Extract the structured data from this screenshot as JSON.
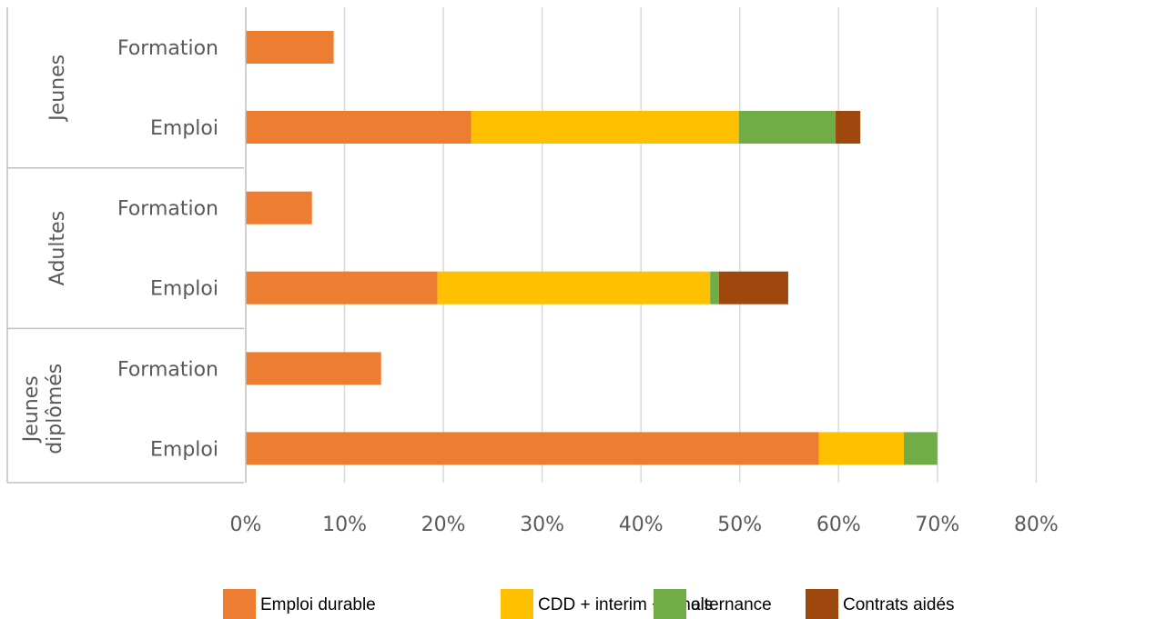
{
  "chart_data": {
    "type": "bar",
    "orientation": "horizontal",
    "stacked": true,
    "groups": [
      {
        "name": "Jeunes",
        "categories": [
          "Formation",
          "Emploi"
        ],
        "values": {
          "Emploi durable": [
            8.9,
            22.8
          ],
          "CDD + interim +6 mois": [
            0,
            27.1
          ],
          "alternance": [
            0,
            9.8
          ],
          "Contrats aidés": [
            0,
            2.5
          ]
        }
      },
      {
        "name": "Adultes",
        "categories": [
          "Formation",
          "Emploi"
        ],
        "values": {
          "Emploi durable": [
            6.7,
            19.4
          ],
          "CDD + interim +6 mois": [
            0,
            27.6
          ],
          "alternance": [
            0,
            0.9
          ],
          "Contrats aidés": [
            0,
            7.0
          ]
        }
      },
      {
        "name": "Jeunes diplômés",
        "name_lines": [
          "Jeunes",
          "diplômés"
        ],
        "categories": [
          "Formation",
          "Emploi"
        ],
        "values": {
          "Emploi durable": [
            13.7,
            58.0
          ],
          "CDD + interim +6 mois": [
            0,
            8.6
          ],
          "alternance": [
            0,
            3.4
          ],
          "Contrats aidés": [
            0,
            0
          ]
        }
      }
    ],
    "series": [
      {
        "name": "Emploi durable",
        "color": "#ED7D31"
      },
      {
        "name": "CDD + interim +6 mois",
        "color": "#FFC000"
      },
      {
        "name": "alternance",
        "color": "#70AD47"
      },
      {
        "name": "Contrats aidés",
        "color": "#9E480E"
      }
    ],
    "xlim": [
      0,
      80
    ],
    "xticks": [
      0,
      10,
      20,
      30,
      40,
      50,
      60,
      70,
      80
    ],
    "xtick_labels": [
      "0%",
      "10%",
      "20%",
      "30%",
      "40%",
      "50%",
      "60%",
      "70%",
      "80%"
    ],
    "grid": true,
    "legend_position": "bottom",
    "title": "",
    "xlabel": "",
    "ylabel": ""
  }
}
